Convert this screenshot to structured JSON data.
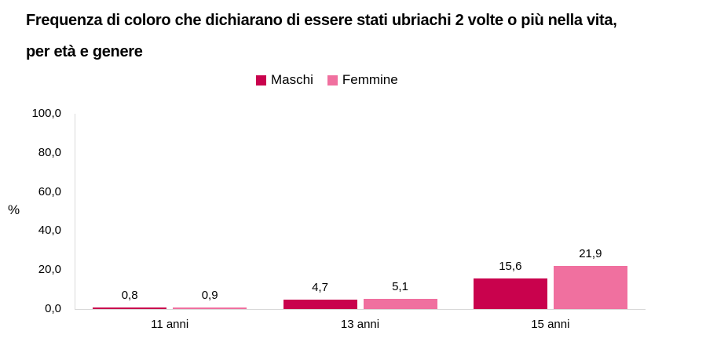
{
  "title": {
    "line1": "Frequenza di coloro che dichiarano di essere stati ubriachi 2 volte o più nella vita,",
    "line2": "per età e genere"
  },
  "legend": {
    "items": [
      {
        "label": "Maschi",
        "color": "#C9024D"
      },
      {
        "label": "Femmine",
        "color": "#F0709F"
      }
    ]
  },
  "y_axis": {
    "label": "%",
    "ticks": [
      "100,0",
      "80,0",
      "60,0",
      "40,0",
      "20,0",
      "0,0"
    ]
  },
  "x_axis": {
    "categories": [
      "11 anni",
      "13 anni",
      "15 anni"
    ]
  },
  "colors": {
    "maschi": "#C9024D",
    "femmine": "#F0709F",
    "axis_line": "#D9D9D9",
    "text": "#000000"
  },
  "chart_data": {
    "type": "bar",
    "title": "Frequenza di coloro che dichiarano di essere stati ubriachi 2 volte o più nella vita, per età e genere",
    "categories": [
      "11 anni",
      "13 anni",
      "15 anni"
    ],
    "series": [
      {
        "name": "Maschi",
        "color": "#C9024D",
        "values": [
          0.8,
          4.7,
          15.6
        ],
        "value_labels": [
          "0,8",
          "4,7",
          "15,6"
        ]
      },
      {
        "name": "Femmine",
        "color": "#F0709F",
        "values": [
          0.9,
          5.1,
          21.9
        ],
        "value_labels": [
          "0,9",
          "5,1",
          "21,9"
        ]
      }
    ],
    "xlabel": "",
    "ylabel": "%",
    "ylim": [
      0,
      100
    ],
    "ytick_interval": 20,
    "grid": false,
    "legend_position": "top-center"
  }
}
